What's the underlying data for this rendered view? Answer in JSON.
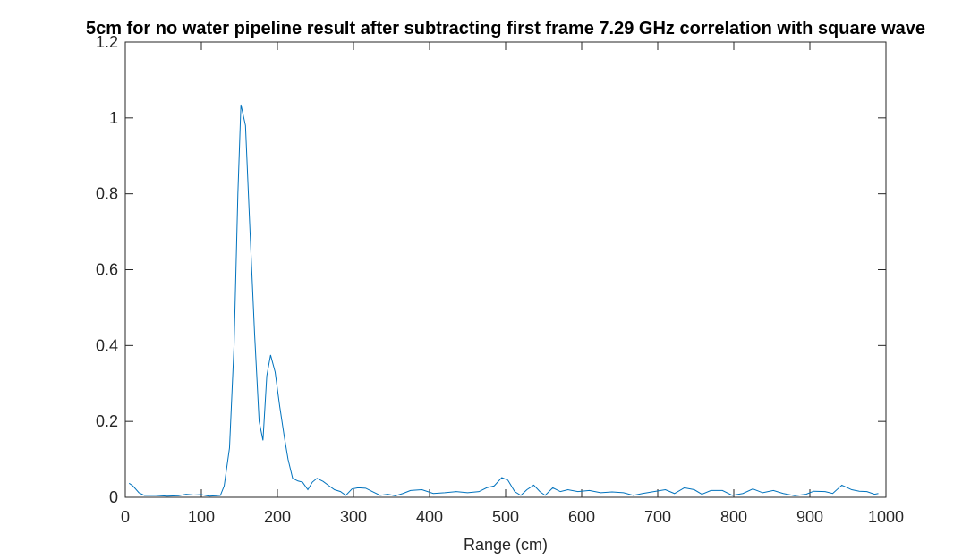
{
  "chart_data": {
    "type": "line",
    "title": "5cm for no water pipeline result after subtracting first frame 7.29 GHz correlation with square wave",
    "xlabel": "Range (cm)",
    "x": [
      5,
      10,
      18,
      25,
      40,
      55,
      70,
      80,
      90,
      100,
      110,
      120,
      125,
      130,
      137,
      143,
      148,
      152,
      158,
      164,
      170,
      176,
      181,
      186,
      191,
      197,
      203,
      209,
      214,
      220,
      227,
      233,
      240,
      246,
      252,
      260,
      268,
      275,
      283,
      290,
      298,
      306,
      316,
      325,
      335,
      345,
      355,
      365,
      375,
      390,
      405,
      420,
      435,
      450,
      465,
      475,
      485,
      495,
      503,
      512,
      520,
      528,
      537,
      545,
      552,
      562,
      572,
      582,
      595,
      610,
      625,
      640,
      655,
      668,
      680,
      695,
      710,
      722,
      735,
      748,
      758,
      770,
      785,
      798,
      812,
      825,
      838,
      852,
      865,
      880,
      895,
      905,
      920,
      930,
      942,
      955,
      965,
      975,
      985,
      990
    ],
    "series": [
      {
        "color": "#0072bd",
        "values": [
          0.037,
          0.03,
          0.012,
          0.005,
          0.005,
          0.003,
          0.004,
          0.008,
          0.006,
          0.007,
          0.003,
          0.004,
          0.005,
          0.03,
          0.13,
          0.4,
          0.8,
          1.035,
          0.98,
          0.7,
          0.43,
          0.2,
          0.15,
          0.32,
          0.375,
          0.33,
          0.24,
          0.16,
          0.1,
          0.05,
          0.043,
          0.04,
          0.02,
          0.04,
          0.05,
          0.042,
          0.03,
          0.02,
          0.015,
          0.005,
          0.022,
          0.025,
          0.024,
          0.015,
          0.005,
          0.008,
          0.004,
          0.01,
          0.018,
          0.02,
          0.01,
          0.012,
          0.015,
          0.012,
          0.015,
          0.025,
          0.03,
          0.052,
          0.045,
          0.015,
          0.005,
          0.02,
          0.032,
          0.015,
          0.005,
          0.025,
          0.015,
          0.02,
          0.015,
          0.018,
          0.012,
          0.014,
          0.012,
          0.005,
          0.01,
          0.015,
          0.02,
          0.01,
          0.025,
          0.02,
          0.008,
          0.018,
          0.018,
          0.005,
          0.01,
          0.022,
          0.012,
          0.018,
          0.01,
          0.004,
          0.008,
          0.016,
          0.015,
          0.01,
          0.032,
          0.02,
          0.016,
          0.015,
          0.008,
          0.01
        ]
      }
    ],
    "xlim": [
      0,
      1000
    ],
    "xticks": [
      0,
      100,
      200,
      300,
      400,
      500,
      600,
      700,
      800,
      900,
      1000
    ],
    "ylim": [
      0,
      1.2
    ],
    "yticks": [
      0,
      0.2,
      0.4,
      0.6,
      0.8,
      1,
      1.2
    ]
  }
}
